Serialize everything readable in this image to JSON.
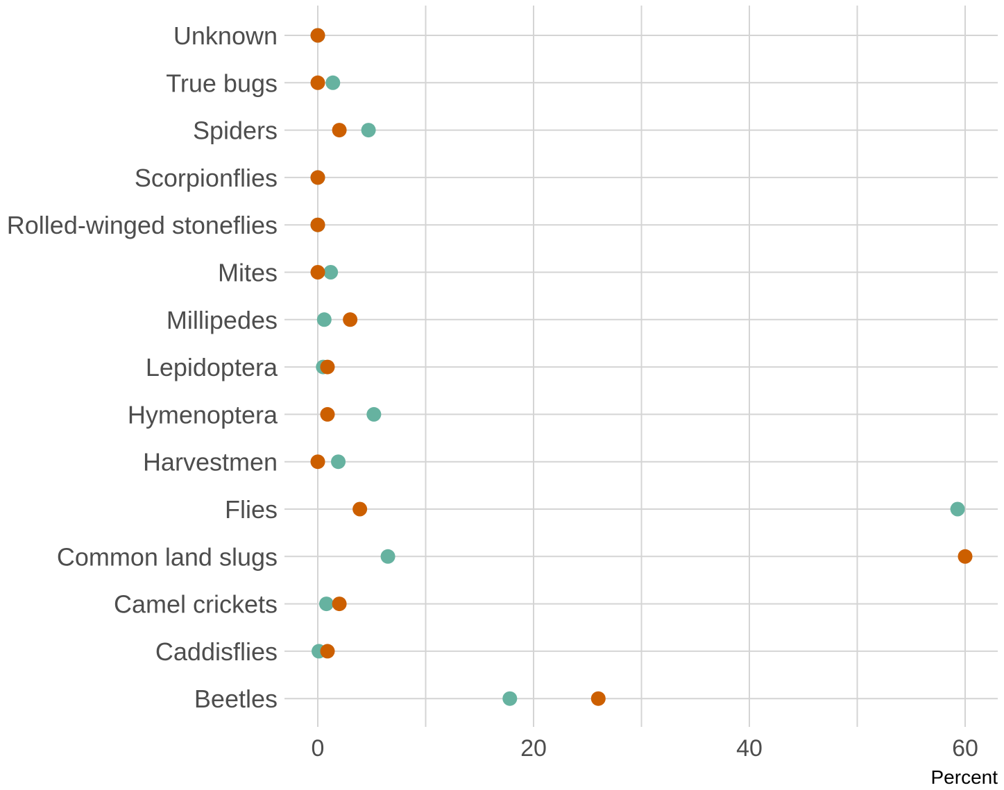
{
  "chart_data": {
    "type": "scatter",
    "orientation": "horizontal-dot",
    "xlabel": "Percent",
    "ylabel": "",
    "xlim": [
      -3,
      63
    ],
    "x_ticks": [
      0,
      20,
      40,
      60
    ],
    "x_tick_labels": [
      "0",
      "20",
      "40",
      "60"
    ],
    "x_minor_ticks": [
      10,
      30,
      50
    ],
    "grid": true,
    "legend": "none",
    "categories": [
      "Unknown",
      "True bugs",
      "Spiders",
      "Scorpionflies",
      "Rolled-winged stoneflies",
      "Mites",
      "Millipedes",
      "Lepidoptera",
      "Hymenoptera",
      "Harvestmen",
      "Flies",
      "Common land slugs",
      "Camel crickets",
      "Caddisflies",
      "Beetles"
    ],
    "series": [
      {
        "color": "#66b2a0",
        "values": [
          0,
          1.4,
          4.7,
          0,
          0,
          1.2,
          0.6,
          0.5,
          5.2,
          1.9,
          59.3,
          6.5,
          0.8,
          0.1,
          17.8
        ]
      },
      {
        "color": "#cc5f00",
        "values": [
          0,
          0,
          2.0,
          0,
          0,
          0,
          3.0,
          0.9,
          0.9,
          0,
          3.9,
          60.0,
          2.0,
          0.9,
          26.0
        ]
      }
    ]
  }
}
